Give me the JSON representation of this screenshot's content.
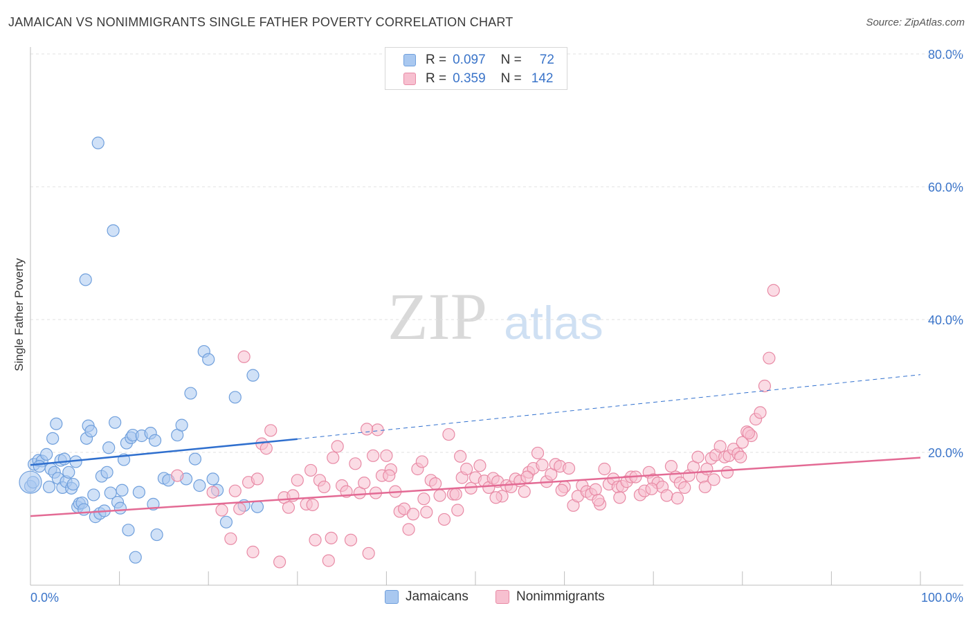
{
  "title": "JAMAICAN VS NONIMMIGRANTS SINGLE FATHER POVERTY CORRELATION CHART",
  "source": "Source: ZipAtlas.com",
  "watermark": {
    "zip": "ZIP",
    "atlas": "atlas"
  },
  "legend": {
    "rows": [
      {
        "r_label": "R =",
        "r_value": "0.097",
        "n_label": "N =",
        "n_value": "72",
        "color": "#a9c8f0",
        "border": "#6f9fdc"
      },
      {
        "r_label": "R =",
        "r_value": "0.359",
        "n_label": "N =",
        "n_value": "142",
        "color": "#f7c0d0",
        "border": "#e88aa5"
      }
    ]
  },
  "bottom_legend": [
    {
      "label": "Jamaicans",
      "color": "#a9c8f0",
      "border": "#6f9fdc"
    },
    {
      "label": "Nonimmigrants",
      "color": "#f7c0d0",
      "border": "#e88aa5"
    }
  ],
  "chart_data": {
    "type": "scatter",
    "title": "JAMAICAN VS NONIMMIGRANTS SINGLE FATHER POVERTY CORRELATION CHART",
    "xlabel": "",
    "ylabel": "Single Father Poverty",
    "xlim": [
      0,
      100
    ],
    "ylim": [
      0,
      80
    ],
    "x_tick_labels": [
      "0.0%",
      "100.0%"
    ],
    "y_tick_labels": [
      {
        "value": 20,
        "label": "20.0%"
      },
      {
        "value": 40,
        "label": "40.0%"
      },
      {
        "value": 60,
        "label": "60.0%"
      },
      {
        "value": 80,
        "label": "80.0%"
      }
    ],
    "grid": true,
    "legend_position": "top-center",
    "series": [
      {
        "name": "Jamaicans",
        "color": "#a9c8f0",
        "stroke": "#6f9fdc",
        "line_color": "#2f6fce",
        "trend": {
          "x": [
            0,
            30
          ],
          "y": [
            18.1,
            22.0
          ],
          "dashed_extension_to": [
            100,
            31.7
          ]
        },
        "points": [
          [
            0.0,
            14.9
          ],
          [
            0.4,
            18.2
          ],
          [
            0.9,
            18.8
          ],
          [
            1.3,
            18.7
          ],
          [
            1.8,
            19.7
          ],
          [
            2.1,
            14.8
          ],
          [
            2.3,
            17.5
          ],
          [
            2.5,
            22.1
          ],
          [
            2.7,
            17.0
          ],
          [
            2.9,
            24.3
          ],
          [
            3.1,
            16.1
          ],
          [
            3.4,
            18.8
          ],
          [
            3.6,
            14.7
          ],
          [
            3.8,
            19.0
          ],
          [
            4.0,
            15.6
          ],
          [
            4.3,
            17.0
          ],
          [
            4.6,
            14.6
          ],
          [
            4.8,
            15.2
          ],
          [
            5.1,
            18.6
          ],
          [
            5.3,
            11.8
          ],
          [
            5.5,
            12.3
          ],
          [
            5.8,
            12.4
          ],
          [
            6.0,
            11.4
          ],
          [
            6.3,
            22.1
          ],
          [
            6.5,
            24.0
          ],
          [
            6.8,
            23.2
          ],
          [
            7.1,
            13.6
          ],
          [
            7.3,
            10.3
          ],
          [
            7.6,
            66.6
          ],
          [
            7.8,
            10.8
          ],
          [
            8.0,
            16.4
          ],
          [
            8.3,
            11.2
          ],
          [
            8.6,
            17.0
          ],
          [
            8.8,
            20.7
          ],
          [
            9.0,
            13.9
          ],
          [
            9.3,
            53.4
          ],
          [
            9.5,
            24.5
          ],
          [
            9.8,
            12.5
          ],
          [
            10.1,
            11.6
          ],
          [
            10.3,
            14.3
          ],
          [
            10.5,
            18.9
          ],
          [
            10.8,
            21.4
          ],
          [
            11.0,
            8.3
          ],
          [
            11.3,
            22.2
          ],
          [
            11.5,
            22.6
          ],
          [
            11.8,
            4.2
          ],
          [
            12.2,
            14.0
          ],
          [
            12.5,
            22.5
          ],
          [
            13.5,
            22.9
          ],
          [
            13.8,
            12.2
          ],
          [
            14.0,
            21.8
          ],
          [
            14.2,
            7.6
          ],
          [
            15.0,
            16.1
          ],
          [
            15.5,
            15.8
          ],
          [
            16.5,
            22.6
          ],
          [
            17.0,
            24.1
          ],
          [
            17.5,
            16.0
          ],
          [
            18.0,
            28.9
          ],
          [
            18.5,
            19.0
          ],
          [
            19.0,
            15.0
          ],
          [
            19.5,
            35.2
          ],
          [
            20.0,
            34.0
          ],
          [
            20.5,
            16.0
          ],
          [
            21.0,
            14.3
          ],
          [
            22.0,
            9.5
          ],
          [
            23.0,
            28.3
          ],
          [
            24.0,
            12.0
          ],
          [
            25.0,
            31.6
          ],
          [
            25.5,
            11.8
          ],
          [
            6.2,
            46.0
          ],
          [
            0.3,
            15.5
          ],
          [
            1.0,
            17.9
          ]
        ]
      },
      {
        "name": "Nonimmigrants",
        "color": "#f7c0d0",
        "stroke": "#e88aa5",
        "line_color": "#e36a94",
        "trend": {
          "x": [
            0,
            100
          ],
          "y": [
            10.4,
            19.2
          ]
        },
        "points": [
          [
            16.5,
            16.5
          ],
          [
            20.5,
            14.0
          ],
          [
            21.5,
            11.3
          ],
          [
            22.5,
            7.0
          ],
          [
            23.0,
            14.2
          ],
          [
            23.5,
            11.5
          ],
          [
            24.0,
            34.4
          ],
          [
            24.5,
            15.5
          ],
          [
            25.0,
            5.0
          ],
          [
            25.5,
            16.0
          ],
          [
            26.0,
            21.3
          ],
          [
            26.5,
            20.6
          ],
          [
            27.0,
            23.3
          ],
          [
            28.0,
            3.5
          ],
          [
            28.5,
            13.2
          ],
          [
            29.0,
            11.7
          ],
          [
            29.5,
            13.5
          ],
          [
            30.0,
            15.8
          ],
          [
            31.0,
            12.2
          ],
          [
            31.5,
            17.3
          ],
          [
            32.0,
            6.8
          ],
          [
            32.5,
            15.8
          ],
          [
            33.0,
            14.8
          ],
          [
            33.5,
            3.7
          ],
          [
            34.0,
            19.2
          ],
          [
            34.5,
            20.9
          ],
          [
            35.0,
            15.0
          ],
          [
            35.5,
            14.1
          ],
          [
            36.0,
            6.8
          ],
          [
            36.5,
            18.3
          ],
          [
            37.0,
            13.9
          ],
          [
            37.5,
            15.4
          ],
          [
            38.0,
            4.8
          ],
          [
            38.5,
            19.5
          ],
          [
            39.0,
            23.4
          ],
          [
            39.5,
            16.5
          ],
          [
            40.0,
            19.5
          ],
          [
            40.5,
            17.4
          ],
          [
            41.0,
            14.1
          ],
          [
            41.5,
            11.1
          ],
          [
            42.0,
            11.5
          ],
          [
            42.5,
            8.4
          ],
          [
            43.0,
            10.7
          ],
          [
            43.5,
            17.5
          ],
          [
            44.0,
            18.6
          ],
          [
            44.5,
            11.0
          ],
          [
            45.0,
            15.8
          ],
          [
            45.5,
            15.3
          ],
          [
            46.0,
            13.5
          ],
          [
            46.5,
            9.9
          ],
          [
            47.0,
            22.7
          ],
          [
            47.5,
            13.7
          ],
          [
            48.0,
            11.3
          ],
          [
            48.5,
            16.2
          ],
          [
            49.0,
            17.5
          ],
          [
            49.5,
            14.6
          ],
          [
            50.0,
            16.2
          ],
          [
            50.5,
            18.0
          ],
          [
            51.0,
            15.7
          ],
          [
            51.5,
            14.7
          ],
          [
            52.0,
            16.1
          ],
          [
            52.5,
            15.6
          ],
          [
            53.0,
            13.4
          ],
          [
            53.5,
            15.0
          ],
          [
            54.0,
            14.8
          ],
          [
            54.5,
            16.0
          ],
          [
            55.0,
            15.7
          ],
          [
            55.5,
            14.1
          ],
          [
            56.0,
            17.0
          ],
          [
            56.5,
            17.6
          ],
          [
            57.0,
            19.9
          ],
          [
            57.5,
            18.1
          ],
          [
            58.0,
            15.6
          ],
          [
            58.5,
            16.7
          ],
          [
            59.0,
            18.2
          ],
          [
            59.5,
            17.9
          ],
          [
            60.0,
            14.8
          ],
          [
            60.5,
            17.6
          ],
          [
            61.0,
            12.0
          ],
          [
            61.5,
            13.4
          ],
          [
            62.0,
            15.0
          ],
          [
            62.5,
            14.1
          ],
          [
            63.0,
            13.7
          ],
          [
            63.5,
            14.4
          ],
          [
            64.0,
            12.2
          ],
          [
            64.5,
            17.5
          ],
          [
            65.0,
            15.2
          ],
          [
            65.5,
            16.0
          ],
          [
            66.0,
            14.8
          ],
          [
            66.5,
            14.9
          ],
          [
            67.0,
            15.6
          ],
          [
            67.5,
            16.3
          ],
          [
            68.0,
            16.3
          ],
          [
            68.5,
            13.6
          ],
          [
            69.0,
            14.2
          ],
          [
            69.5,
            17.0
          ],
          [
            70.0,
            15.9
          ],
          [
            70.5,
            15.4
          ],
          [
            71.0,
            14.8
          ],
          [
            71.5,
            13.5
          ],
          [
            72.0,
            17.9
          ],
          [
            72.5,
            16.3
          ],
          [
            73.0,
            15.4
          ],
          [
            73.5,
            14.7
          ],
          [
            74.0,
            16.5
          ],
          [
            74.5,
            17.8
          ],
          [
            75.0,
            19.3
          ],
          [
            75.5,
            16.3
          ],
          [
            76.0,
            17.5
          ],
          [
            76.5,
            19.1
          ],
          [
            77.0,
            19.6
          ],
          [
            77.5,
            20.9
          ],
          [
            78.0,
            19.3
          ],
          [
            78.5,
            19.5
          ],
          [
            79.0,
            20.5
          ],
          [
            79.5,
            19.8
          ],
          [
            80.0,
            21.5
          ],
          [
            80.5,
            23.1
          ],
          [
            81.0,
            22.5
          ],
          [
            81.5,
            25.0
          ],
          [
            82.0,
            26.0
          ],
          [
            82.5,
            30.0
          ],
          [
            83.0,
            34.2
          ],
          [
            83.5,
            44.4
          ],
          [
            48.3,
            19.4
          ],
          [
            37.8,
            23.5
          ],
          [
            31.7,
            12.1
          ],
          [
            38.8,
            13.9
          ],
          [
            44.2,
            13.0
          ],
          [
            52.3,
            13.2
          ],
          [
            59.7,
            14.3
          ],
          [
            66.2,
            13.2
          ],
          [
            72.7,
            13.1
          ],
          [
            76.8,
            15.9
          ],
          [
            78.3,
            17.0
          ],
          [
            79.8,
            19.3
          ],
          [
            80.7,
            22.9
          ],
          [
            33.8,
            7.1
          ],
          [
            40.3,
            16.5
          ],
          [
            47.8,
            13.7
          ],
          [
            55.8,
            16.3
          ],
          [
            63.8,
            12.8
          ],
          [
            69.8,
            14.5
          ],
          [
            75.8,
            14.8
          ]
        ]
      }
    ]
  }
}
